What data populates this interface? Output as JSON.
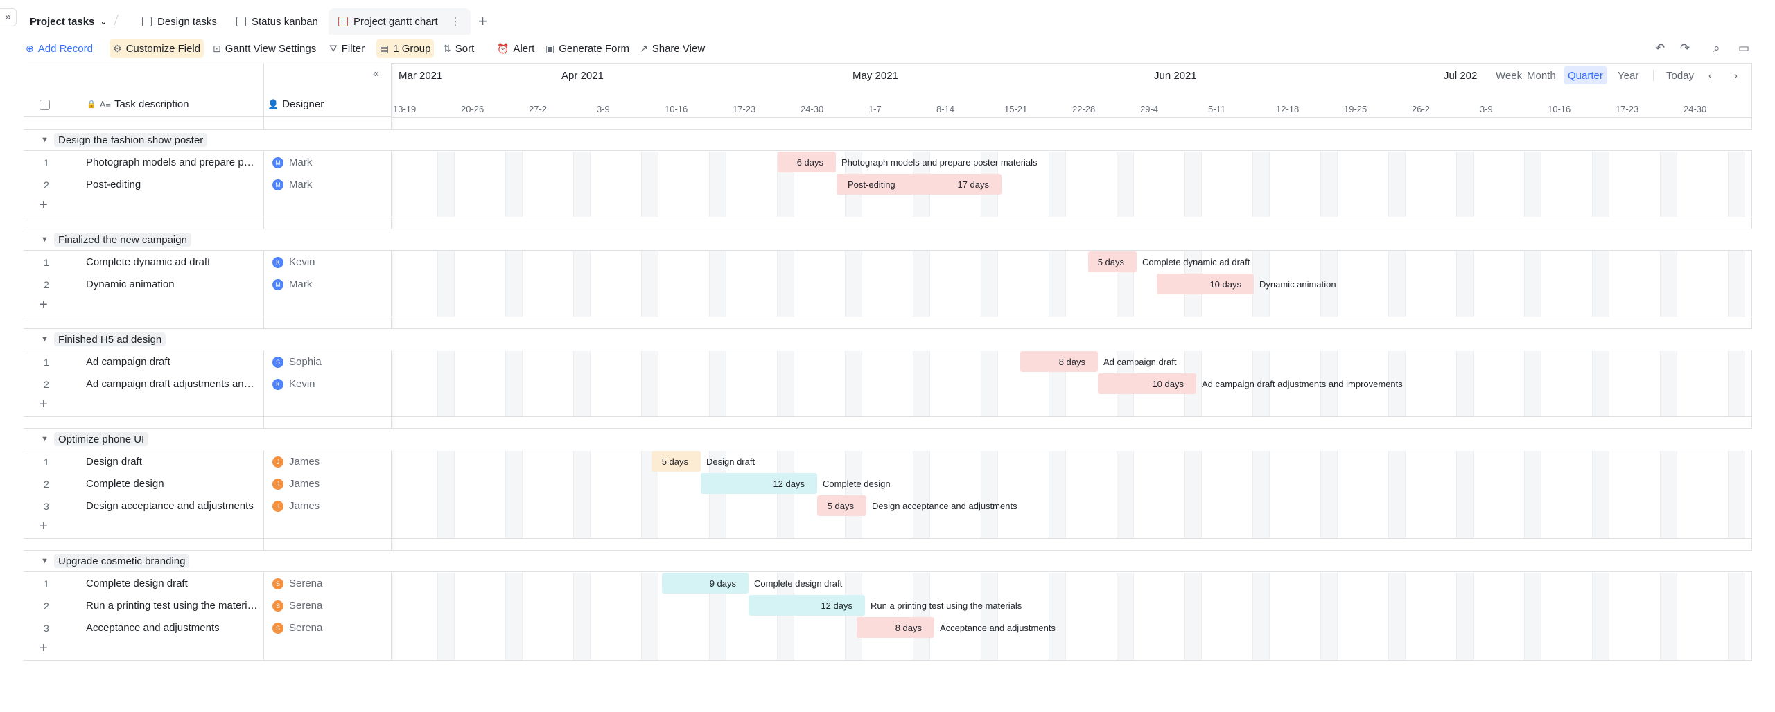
{
  "tabs": {
    "title": "Project tasks",
    "items": [
      {
        "label": "Design tasks"
      },
      {
        "label": "Status kanban"
      },
      {
        "label": "Project gantt chart"
      }
    ]
  },
  "toolbar": {
    "add_record": "Add Record",
    "customize_field": "Customize Field",
    "gantt_settings": "Gantt View Settings",
    "filter": "Filter",
    "group": "1 Group",
    "sort": "Sort",
    "alert": "Alert",
    "generate_form": "Generate Form",
    "share_view": "Share View"
  },
  "columns": {
    "task": "Task description",
    "designer": "Designer"
  },
  "timeline": {
    "months": [
      "Mar 2021",
      "Apr 2021",
      "May 2021",
      "Jun 2021",
      "Jul 202"
    ],
    "weeks": [
      "13-19",
      "20-26",
      "27-2",
      "3-9",
      "10-16",
      "17-23",
      "24-30",
      "1-7",
      "8-14",
      "15-21",
      "22-28",
      "29-4",
      "5-11",
      "12-18",
      "19-25",
      "26-2",
      "3-9",
      "10-16",
      "17-23",
      "24-30"
    ],
    "views": [
      "Week",
      "Month",
      "Quarter",
      "Year"
    ],
    "active_view": "Quarter",
    "today": "Today"
  },
  "colors": {
    "red": "#fbdcda",
    "orange": "#fdecd4",
    "cyan": "#d5f3f4",
    "accent": "#3370ff"
  },
  "groups": [
    {
      "name": "Design the fashion show poster",
      "rows": [
        {
          "num": "1",
          "task": "Photograph models and prepare pos...",
          "designer": "Mark",
          "initial": "M",
          "avatar": "#4e83fd",
          "bar": {
            "color": "red",
            "dur": "6 days",
            "label": "Photograph models and prepare poster materials"
          }
        },
        {
          "num": "2",
          "task": "Post-editing",
          "designer": "Mark",
          "initial": "M",
          "avatar": "#4e83fd",
          "bar": {
            "color": "red",
            "dur": "17 days",
            "inlabel": "Post-editing"
          }
        }
      ]
    },
    {
      "name": "Finalized the new campaign",
      "rows": [
        {
          "num": "1",
          "task": "Complete dynamic ad draft",
          "designer": "Kevin",
          "initial": "K",
          "avatar": "#4e83fd",
          "bar": {
            "color": "red",
            "dur": "5 days",
            "label": "Complete dynamic ad draft"
          }
        },
        {
          "num": "2",
          "task": "Dynamic animation",
          "designer": "Mark",
          "initial": "M",
          "avatar": "#4e83fd",
          "bar": {
            "color": "red",
            "dur": "10 days",
            "label": "Dynamic animation"
          }
        }
      ]
    },
    {
      "name": "Finished H5 ad design",
      "rows": [
        {
          "num": "1",
          "task": "Ad campaign draft",
          "designer": "Sophia",
          "initial": "S",
          "avatar": "#4e83fd",
          "bar": {
            "color": "red",
            "dur": "8 days",
            "label": "Ad campaign draft"
          }
        },
        {
          "num": "2",
          "task": "Ad campaign draft adjustments and i...",
          "designer": "Kevin",
          "initial": "K",
          "avatar": "#4e83fd",
          "bar": {
            "color": "red",
            "dur": "10 days",
            "label": "Ad campaign draft adjustments and improvements"
          }
        }
      ]
    },
    {
      "name": "Optimize phone UI",
      "rows": [
        {
          "num": "1",
          "task": "Design draft",
          "designer": "James",
          "initial": "J",
          "avatar": "#f5903d",
          "bar": {
            "color": "orange",
            "dur": "5 days",
            "label": "Design draft"
          }
        },
        {
          "num": "2",
          "task": "Complete design",
          "designer": "James",
          "initial": "J",
          "avatar": "#f5903d",
          "bar": {
            "color": "cyan",
            "dur": "12 days",
            "label": "Complete design"
          }
        },
        {
          "num": "3",
          "task": "Design acceptance and adjustments",
          "designer": "James",
          "initial": "J",
          "avatar": "#f5903d",
          "bar": {
            "color": "red",
            "dur": "5 days",
            "label": "Design acceptance and adjustments"
          }
        }
      ]
    },
    {
      "name": "Upgrade cosmetic branding",
      "rows": [
        {
          "num": "1",
          "task": "Complete design draft",
          "designer": "Serena",
          "initial": "S",
          "avatar": "#f5903d",
          "bar": {
            "color": "cyan",
            "dur": "9 days",
            "label": "Complete design draft"
          }
        },
        {
          "num": "2",
          "task": "Run a printing test using the materials",
          "designer": "Serena",
          "initial": "S",
          "avatar": "#f5903d",
          "bar": {
            "color": "cyan",
            "dur": "12 days",
            "label": "Run a printing test using the materials"
          }
        },
        {
          "num": "3",
          "task": "Acceptance and adjustments",
          "designer": "Serena",
          "initial": "S",
          "avatar": "#f5903d",
          "bar": {
            "color": "red",
            "dur": "8 days",
            "label": "Acceptance and adjustments"
          }
        }
      ]
    }
  ]
}
